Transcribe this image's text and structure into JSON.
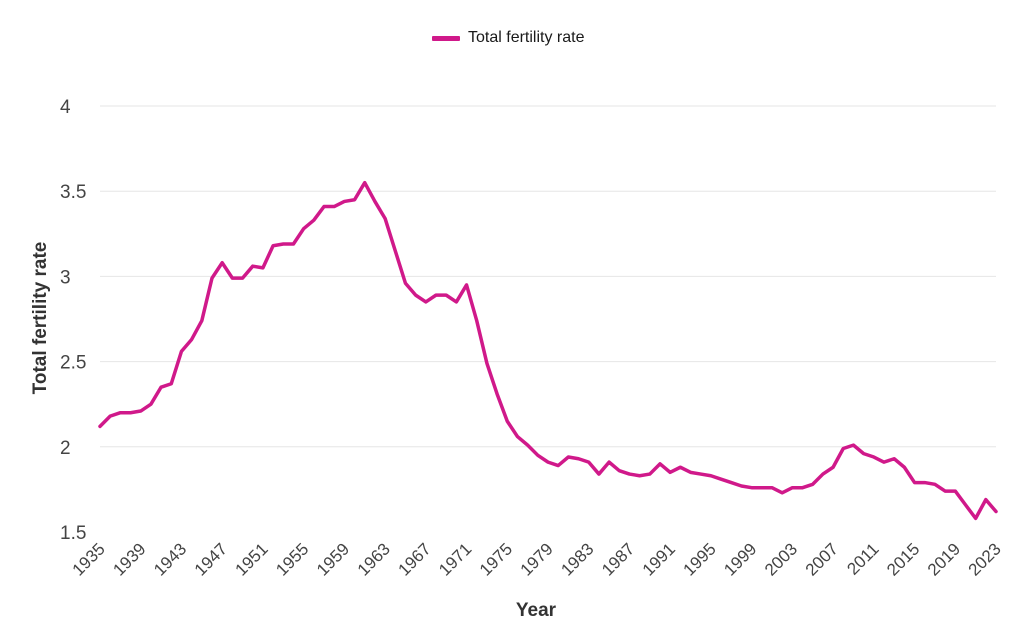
{
  "chart_data": {
    "type": "line",
    "title": "",
    "xlabel": "Year",
    "ylabel": "Total fertility rate",
    "xlim": [
      1935,
      2023
    ],
    "ylim": [
      1.5,
      4
    ],
    "yticks": [
      1.5,
      2,
      2.5,
      3,
      3.5,
      4
    ],
    "ytick_labels": [
      "1.5",
      "2",
      "2.5",
      "3",
      "3.5",
      "4"
    ],
    "xticks": [
      1935,
      1939,
      1943,
      1947,
      1951,
      1955,
      1959,
      1963,
      1967,
      1971,
      1975,
      1979,
      1983,
      1987,
      1991,
      1995,
      1999,
      2003,
      2007,
      2011,
      2015,
      2019,
      2023
    ],
    "xtick_labels": [
      "1935",
      "1939",
      "1943",
      "1947",
      "1951",
      "1955",
      "1959",
      "1963",
      "1967",
      "1971",
      "1975",
      "1979",
      "1983",
      "1987",
      "1991",
      "1995",
      "1999",
      "2003",
      "2007",
      "2011",
      "2015",
      "2019",
      "2023"
    ],
    "grid": true,
    "legend_position": "top-center",
    "series": [
      {
        "name": "Total fertility rate",
        "color": "#d0198a",
        "x": [
          1935,
          1936,
          1937,
          1938,
          1939,
          1940,
          1941,
          1942,
          1943,
          1944,
          1945,
          1946,
          1947,
          1948,
          1949,
          1950,
          1951,
          1952,
          1953,
          1954,
          1955,
          1956,
          1957,
          1958,
          1959,
          1960,
          1961,
          1962,
          1963,
          1964,
          1965,
          1966,
          1967,
          1968,
          1969,
          1970,
          1971,
          1972,
          1973,
          1974,
          1975,
          1976,
          1977,
          1978,
          1979,
          1980,
          1981,
          1982,
          1983,
          1984,
          1985,
          1986,
          1987,
          1988,
          1989,
          1990,
          1991,
          1992,
          1993,
          1994,
          1995,
          1996,
          1997,
          1998,
          1999,
          2000,
          2001,
          2002,
          2003,
          2004,
          2005,
          2006,
          2007,
          2008,
          2009,
          2010,
          2011,
          2012,
          2013,
          2014,
          2015,
          2016,
          2017,
          2018,
          2019,
          2020,
          2021,
          2022,
          2023
        ],
        "values": [
          2.12,
          2.18,
          2.2,
          2.2,
          2.21,
          2.25,
          2.35,
          2.37,
          2.56,
          2.63,
          2.74,
          2.99,
          3.08,
          2.99,
          2.99,
          3.06,
          3.05,
          3.18,
          3.19,
          3.19,
          3.28,
          3.33,
          3.41,
          3.41,
          3.44,
          3.45,
          3.55,
          3.44,
          3.34,
          3.15,
          2.96,
          2.89,
          2.85,
          2.89,
          2.89,
          2.85,
          2.95,
          2.74,
          2.49,
          2.31,
          2.15,
          2.06,
          2.01,
          1.95,
          1.91,
          1.89,
          1.94,
          1.93,
          1.91,
          1.84,
          1.91,
          1.86,
          1.84,
          1.83,
          1.84,
          1.9,
          1.85,
          1.88,
          1.85,
          1.84,
          1.83,
          1.81,
          1.79,
          1.77,
          1.76,
          1.76,
          1.76,
          1.73,
          1.76,
          1.76,
          1.78,
          1.84,
          1.88,
          1.99,
          2.01,
          1.96,
          1.94,
          1.91,
          1.93,
          1.88,
          1.79,
          1.79,
          1.78,
          1.74,
          1.74,
          1.66,
          1.58,
          1.69,
          1.62
        ]
      }
    ]
  }
}
